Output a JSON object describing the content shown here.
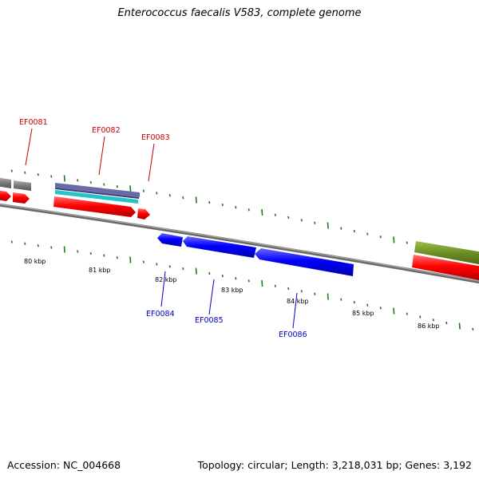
{
  "title": "Enterococcus faecalis V583, complete genome",
  "footer": {
    "accession": "Accession: NC_004668",
    "summary": "Topology: circular; Length: 3,218,031 bp; Genes: 3,192"
  },
  "colors": {
    "forward_label": "#cc0000",
    "reverse_label": "#0000cc",
    "tick": "#1a7a1a",
    "backbone": "#8a8a8a",
    "cds_forward": "#ff0000",
    "cds_reverse": "#0000ff",
    "gray_feature": "#7a7a7a",
    "olive_feature": "#6b8e23",
    "cyan_band": "#22c4c8",
    "purple_band": "#6a6aa6"
  },
  "genes_forward": [
    {
      "label": "EF0081"
    },
    {
      "label": "EF0082"
    },
    {
      "label": "EF0083"
    }
  ],
  "genes_reverse": [
    {
      "label": "EF0084"
    },
    {
      "label": "EF0085"
    },
    {
      "label": "EF0086"
    }
  ],
  "kbp_labels": [
    "80 kbp",
    "81 kbp",
    "82 kbp",
    "83 kbp",
    "84 kbp",
    "85 kbp",
    "86 kbp"
  ]
}
